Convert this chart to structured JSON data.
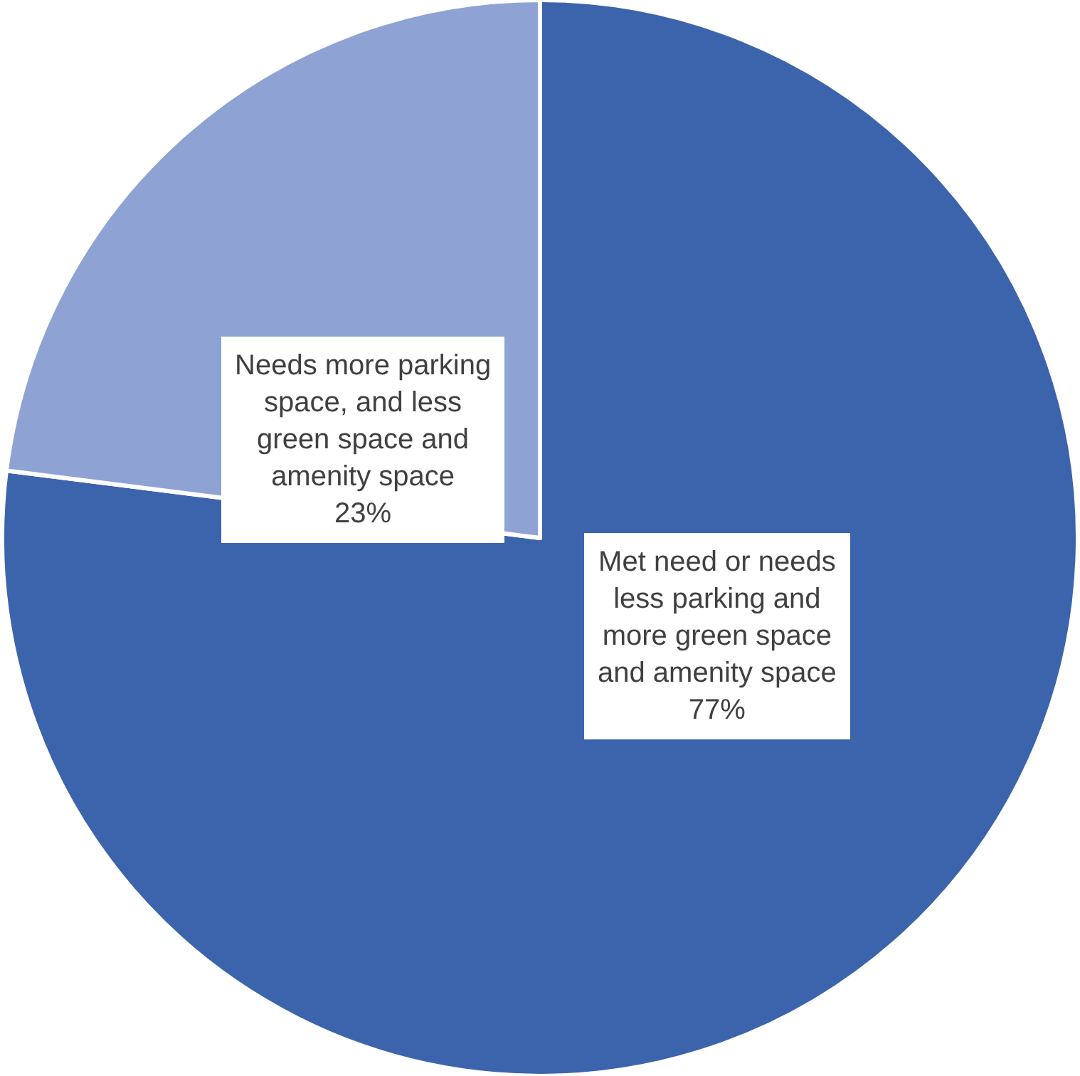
{
  "chart_data": {
    "type": "pie",
    "categories": [
      "Met need or needs less parking and more green space and amenity space",
      "Needs more parking space, and less green space and amenity space"
    ],
    "values": [
      77,
      23
    ],
    "value_labels": [
      "77%",
      "23%"
    ],
    "colors": [
      "#3c64ac",
      "#8fa2d4"
    ],
    "legend": false
  }
}
